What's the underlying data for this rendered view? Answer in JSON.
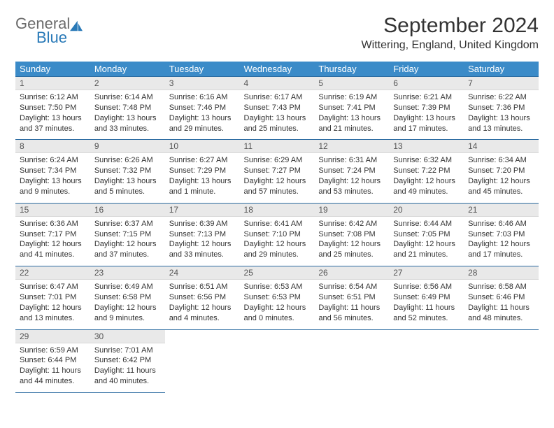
{
  "brand": {
    "general": "General",
    "blue": "Blue",
    "icon_color": "#2a7ab8"
  },
  "title": "September 2024",
  "location": "Wittering, England, United Kingdom",
  "colors": {
    "header_bg": "#3b8bc8",
    "header_text": "#ffffff",
    "daynum_bg": "#e9e9e9",
    "cell_border": "#2a6aa0",
    "body_text": "#333333"
  },
  "weekdays": [
    "Sunday",
    "Monday",
    "Tuesday",
    "Wednesday",
    "Thursday",
    "Friday",
    "Saturday"
  ],
  "grid": {
    "rows": 5,
    "cols": 7
  },
  "days": [
    {
      "n": "1",
      "sunrise": "6:12 AM",
      "sunset": "7:50 PM",
      "daylight": "13 hours and 37 minutes."
    },
    {
      "n": "2",
      "sunrise": "6:14 AM",
      "sunset": "7:48 PM",
      "daylight": "13 hours and 33 minutes."
    },
    {
      "n": "3",
      "sunrise": "6:16 AM",
      "sunset": "7:46 PM",
      "daylight": "13 hours and 29 minutes."
    },
    {
      "n": "4",
      "sunrise": "6:17 AM",
      "sunset": "7:43 PM",
      "daylight": "13 hours and 25 minutes."
    },
    {
      "n": "5",
      "sunrise": "6:19 AM",
      "sunset": "7:41 PM",
      "daylight": "13 hours and 21 minutes."
    },
    {
      "n": "6",
      "sunrise": "6:21 AM",
      "sunset": "7:39 PM",
      "daylight": "13 hours and 17 minutes."
    },
    {
      "n": "7",
      "sunrise": "6:22 AM",
      "sunset": "7:36 PM",
      "daylight": "13 hours and 13 minutes."
    },
    {
      "n": "8",
      "sunrise": "6:24 AM",
      "sunset": "7:34 PM",
      "daylight": "13 hours and 9 minutes."
    },
    {
      "n": "9",
      "sunrise": "6:26 AM",
      "sunset": "7:32 PM",
      "daylight": "13 hours and 5 minutes."
    },
    {
      "n": "10",
      "sunrise": "6:27 AM",
      "sunset": "7:29 PM",
      "daylight": "13 hours and 1 minute."
    },
    {
      "n": "11",
      "sunrise": "6:29 AM",
      "sunset": "7:27 PM",
      "daylight": "12 hours and 57 minutes."
    },
    {
      "n": "12",
      "sunrise": "6:31 AM",
      "sunset": "7:24 PM",
      "daylight": "12 hours and 53 minutes."
    },
    {
      "n": "13",
      "sunrise": "6:32 AM",
      "sunset": "7:22 PM",
      "daylight": "12 hours and 49 minutes."
    },
    {
      "n": "14",
      "sunrise": "6:34 AM",
      "sunset": "7:20 PM",
      "daylight": "12 hours and 45 minutes."
    },
    {
      "n": "15",
      "sunrise": "6:36 AM",
      "sunset": "7:17 PM",
      "daylight": "12 hours and 41 minutes."
    },
    {
      "n": "16",
      "sunrise": "6:37 AM",
      "sunset": "7:15 PM",
      "daylight": "12 hours and 37 minutes."
    },
    {
      "n": "17",
      "sunrise": "6:39 AM",
      "sunset": "7:13 PM",
      "daylight": "12 hours and 33 minutes."
    },
    {
      "n": "18",
      "sunrise": "6:41 AM",
      "sunset": "7:10 PM",
      "daylight": "12 hours and 29 minutes."
    },
    {
      "n": "19",
      "sunrise": "6:42 AM",
      "sunset": "7:08 PM",
      "daylight": "12 hours and 25 minutes."
    },
    {
      "n": "20",
      "sunrise": "6:44 AM",
      "sunset": "7:05 PM",
      "daylight": "12 hours and 21 minutes."
    },
    {
      "n": "21",
      "sunrise": "6:46 AM",
      "sunset": "7:03 PM",
      "daylight": "12 hours and 17 minutes."
    },
    {
      "n": "22",
      "sunrise": "6:47 AM",
      "sunset": "7:01 PM",
      "daylight": "12 hours and 13 minutes."
    },
    {
      "n": "23",
      "sunrise": "6:49 AM",
      "sunset": "6:58 PM",
      "daylight": "12 hours and 9 minutes."
    },
    {
      "n": "24",
      "sunrise": "6:51 AM",
      "sunset": "6:56 PM",
      "daylight": "12 hours and 4 minutes."
    },
    {
      "n": "25",
      "sunrise": "6:53 AM",
      "sunset": "6:53 PM",
      "daylight": "12 hours and 0 minutes."
    },
    {
      "n": "26",
      "sunrise": "6:54 AM",
      "sunset": "6:51 PM",
      "daylight": "11 hours and 56 minutes."
    },
    {
      "n": "27",
      "sunrise": "6:56 AM",
      "sunset": "6:49 PM",
      "daylight": "11 hours and 52 minutes."
    },
    {
      "n": "28",
      "sunrise": "6:58 AM",
      "sunset": "6:46 PM",
      "daylight": "11 hours and 48 minutes."
    },
    {
      "n": "29",
      "sunrise": "6:59 AM",
      "sunset": "6:44 PM",
      "daylight": "11 hours and 44 minutes."
    },
    {
      "n": "30",
      "sunrise": "7:01 AM",
      "sunset": "6:42 PM",
      "daylight": "11 hours and 40 minutes."
    }
  ],
  "labels": {
    "sunrise": "Sunrise:",
    "sunset": "Sunset:",
    "daylight": "Daylight:"
  }
}
